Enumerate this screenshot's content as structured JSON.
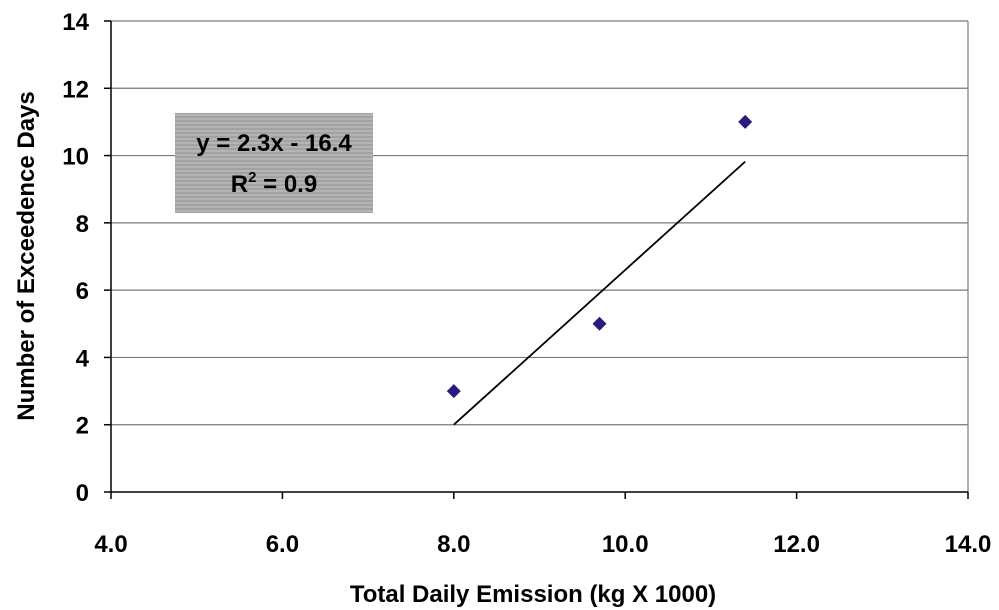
{
  "chart_data": {
    "type": "scatter",
    "title": "",
    "xlabel": "Total Daily Emission (kg X 1000)",
    "ylabel": "Number of Exceedence Days",
    "xlim": [
      4.0,
      14.0
    ],
    "ylim": [
      0,
      14
    ],
    "x_ticks": [
      "4.0",
      "6.0",
      "8.0",
      "10.0",
      "12.0",
      "14.0"
    ],
    "y_ticks": [
      "0",
      "2",
      "4",
      "6",
      "8",
      "10",
      "12",
      "14"
    ],
    "grid": "horizontal",
    "series": [
      {
        "points": [
          {
            "x": 8.0,
            "y": 3
          },
          {
            "x": 9.7,
            "y": 5
          },
          {
            "x": 11.4,
            "y": 11
          }
        ],
        "marker": "diamond",
        "color": "#2e1a7e"
      }
    ],
    "trendline": {
      "type": "linear",
      "x_range": [
        8.0,
        11.4
      ],
      "slope": 2.3,
      "intercept": -16.4,
      "color": "#000000"
    },
    "annotation": {
      "equation": "y = 2.3x - 16.4",
      "r2_prefix": "R",
      "r2_superscript": "2",
      "r2_rest": " = 0.9"
    }
  }
}
